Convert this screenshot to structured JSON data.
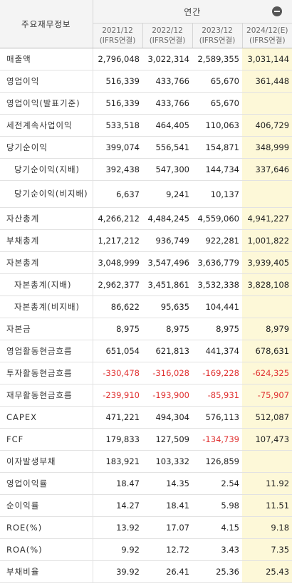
{
  "header": {
    "title": "주요재무정보",
    "period_label": "연간",
    "columns": [
      {
        "year": "2021/12",
        "basis": "(IFRS연결)"
      },
      {
        "year": "2022/12",
        "basis": "(IFRS연결)"
      },
      {
        "year": "2023/12",
        "basis": "(IFRS연결)"
      },
      {
        "year": "2024/12(E)",
        "basis": "(IFRS연결)"
      }
    ]
  },
  "rows": [
    {
      "label": "매출액",
      "values": [
        "2,796,048",
        "3,022,314",
        "2,589,355",
        "3,031,144"
      ]
    },
    {
      "label": "영업이익",
      "values": [
        "516,339",
        "433,766",
        "65,670",
        "361,448"
      ]
    },
    {
      "label": "영업이익(발표기준)",
      "values": [
        "516,339",
        "433,766",
        "65,670",
        ""
      ]
    },
    {
      "label": "세전계속사업이익",
      "values": [
        "533,518",
        "464,405",
        "110,063",
        "406,729"
      ]
    },
    {
      "label": "당기순이익",
      "values": [
        "399,074",
        "556,541",
        "154,871",
        "348,999"
      ]
    },
    {
      "label": "당기순이익(지배)",
      "values": [
        "392,438",
        "547,300",
        "144,734",
        "337,646"
      ]
    },
    {
      "label": "당기순이익(비지배)",
      "values": [
        "6,637",
        "9,241",
        "10,137",
        ""
      ]
    },
    {
      "label": "자산총계",
      "values": [
        "4,266,212",
        "4,484,245",
        "4,559,060",
        "4,941,227"
      ]
    },
    {
      "label": "부채총계",
      "values": [
        "1,217,212",
        "936,749",
        "922,281",
        "1,001,822"
      ]
    },
    {
      "label": "자본총계",
      "values": [
        "3,048,999",
        "3,547,496",
        "3,636,779",
        "3,939,405"
      ]
    },
    {
      "label": "자본총계(지배)",
      "values": [
        "2,962,377",
        "3,451,861",
        "3,532,338",
        "3,828,108"
      ]
    },
    {
      "label": "자본총계(비지배)",
      "values": [
        "86,622",
        "95,635",
        "104,441",
        ""
      ]
    },
    {
      "label": "자본금",
      "values": [
        "8,975",
        "8,975",
        "8,975",
        "8,979"
      ]
    },
    {
      "label": "영업활동현금흐름",
      "values": [
        "651,054",
        "621,813",
        "441,374",
        "678,631"
      ]
    },
    {
      "label": "투자활동현금흐름",
      "values": [
        "-330,478",
        "-316,028",
        "-169,228",
        "-624,325"
      ]
    },
    {
      "label": "재무활동현금흐름",
      "values": [
        "-239,910",
        "-193,900",
        "-85,931",
        "-75,907"
      ]
    },
    {
      "label": "CAPEX",
      "values": [
        "471,221",
        "494,304",
        "576,113",
        "512,087"
      ]
    },
    {
      "label": "FCF",
      "values": [
        "179,833",
        "127,509",
        "-134,739",
        "107,473"
      ]
    },
    {
      "label": "이자발생부채",
      "values": [
        "183,921",
        "103,332",
        "126,859",
        ""
      ]
    },
    {
      "label": "영업이익률",
      "values": [
        "18.47",
        "14.35",
        "2.54",
        "11.92"
      ]
    },
    {
      "label": "순이익률",
      "values": [
        "14.27",
        "18.41",
        "5.98",
        "11.51"
      ]
    },
    {
      "label": "ROE(%)",
      "values": [
        "13.92",
        "17.07",
        "4.15",
        "9.18"
      ]
    },
    {
      "label": "ROA(%)",
      "values": [
        "9.92",
        "12.72",
        "3.43",
        "7.35"
      ]
    },
    {
      "label": "부채비율",
      "values": [
        "39.92",
        "26.41",
        "25.36",
        "25.43"
      ]
    }
  ],
  "colors": {
    "estimate_background": "#fdf8d8",
    "negative_text": "#e03131",
    "header_background": "#f4f4f4"
  },
  "icons": {
    "toggle": "minus-circle-icon"
  }
}
